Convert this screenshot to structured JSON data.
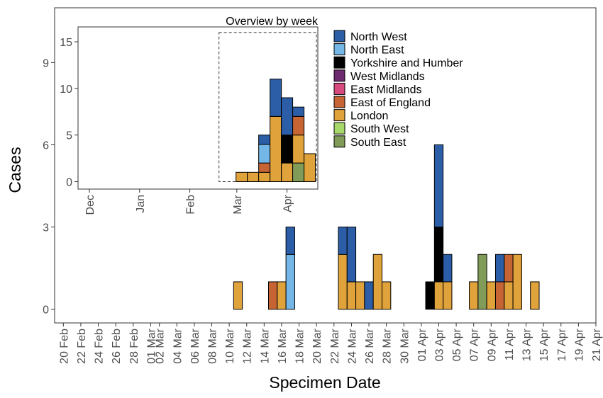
{
  "chart_data": [
    {
      "type": "bar",
      "stacked": true,
      "xlabel": "Specimen Date",
      "ylabel": "Cases",
      "ylim": [
        -0.5,
        11.0
      ],
      "yticks": [
        0,
        3,
        6,
        9
      ],
      "xlim": [
        "2020-02-19",
        "2020-04-21"
      ],
      "x_tick_labels": [
        "20 Feb",
        "22 Feb",
        "24 Feb",
        "26 Feb",
        "28 Feb",
        "01 Mar",
        "02 Mar",
        "04 Mar",
        "06 Mar",
        "08 Mar",
        "10 Mar",
        "12 Mar",
        "14 Mar",
        "16 Mar",
        "18 Mar",
        "20 Mar",
        "22 Mar",
        "24 Mar",
        "26 Mar",
        "28 Mar",
        "30 Mar",
        "01 Apr",
        "03 Apr",
        "05 Apr",
        "07 Apr",
        "09 Apr",
        "11 Apr",
        "13 Apr",
        "15 Apr",
        "17 Apr",
        "19 Apr",
        "21 Apr"
      ],
      "x_tick_dates": [
        "2020-02-20",
        "2020-02-22",
        "2020-02-24",
        "2020-02-26",
        "2020-02-28",
        "2020-03-01",
        "2020-03-02",
        "2020-03-04",
        "2020-03-06",
        "2020-03-08",
        "2020-03-10",
        "2020-03-12",
        "2020-03-14",
        "2020-03-16",
        "2020-03-18",
        "2020-03-20",
        "2020-03-22",
        "2020-03-24",
        "2020-03-26",
        "2020-03-28",
        "2020-03-30",
        "2020-04-01",
        "2020-04-03",
        "2020-04-05",
        "2020-04-07",
        "2020-04-09",
        "2020-04-11",
        "2020-04-13",
        "2020-04-15",
        "2020-04-17",
        "2020-04-19",
        "2020-04-21"
      ],
      "grid": false,
      "bars": [
        {
          "x": "2020-03-11",
          "segments": [
            {
              "region": "London",
              "value": 1
            }
          ]
        },
        {
          "x": "2020-03-15",
          "segments": [
            {
              "region": "East of England",
              "value": 1
            }
          ]
        },
        {
          "x": "2020-03-16",
          "segments": [
            {
              "region": "London",
              "value": 1
            }
          ]
        },
        {
          "x": "2020-03-17",
          "segments": [
            {
              "region": "North East",
              "value": 2
            },
            {
              "region": "North West",
              "value": 1
            }
          ]
        },
        {
          "x": "2020-03-23",
          "segments": [
            {
              "region": "London",
              "value": 2
            },
            {
              "region": "North West",
              "value": 1
            }
          ]
        },
        {
          "x": "2020-03-24",
          "segments": [
            {
              "region": "London",
              "value": 1
            },
            {
              "region": "North West",
              "value": 2
            }
          ]
        },
        {
          "x": "2020-03-25",
          "segments": [
            {
              "region": "London",
              "value": 1
            }
          ]
        },
        {
          "x": "2020-03-26",
          "segments": [
            {
              "region": "North West",
              "value": 1
            }
          ]
        },
        {
          "x": "2020-03-27",
          "segments": [
            {
              "region": "London",
              "value": 2
            }
          ]
        },
        {
          "x": "2020-03-28",
          "segments": [
            {
              "region": "London",
              "value": 1
            }
          ]
        },
        {
          "x": "2020-04-02",
          "segments": [
            {
              "region": "Yorkshire and Humber",
              "value": 1
            }
          ]
        },
        {
          "x": "2020-04-03",
          "segments": [
            {
              "region": "London",
              "value": 1
            },
            {
              "region": "Yorkshire and Humber",
              "value": 2
            },
            {
              "region": "North West",
              "value": 3
            }
          ]
        },
        {
          "x": "2020-04-04",
          "segments": [
            {
              "region": "London",
              "value": 1
            },
            {
              "region": "North West",
              "value": 1
            }
          ]
        },
        {
          "x": "2020-04-07",
          "segments": [
            {
              "region": "London",
              "value": 1
            }
          ]
        },
        {
          "x": "2020-04-08",
          "segments": [
            {
              "region": "South East",
              "value": 2
            }
          ]
        },
        {
          "x": "2020-04-09",
          "segments": [
            {
              "region": "London",
              "value": 1
            }
          ]
        },
        {
          "x": "2020-04-10",
          "segments": [
            {
              "region": "East of England",
              "value": 1
            },
            {
              "region": "North West",
              "value": 1
            }
          ]
        },
        {
          "x": "2020-04-11",
          "segments": [
            {
              "region": "London",
              "value": 1
            },
            {
              "region": "East of England",
              "value": 1
            }
          ]
        },
        {
          "x": "2020-04-12",
          "segments": [
            {
              "region": "London",
              "value": 2
            }
          ]
        },
        {
          "x": "2020-04-14",
          "segments": [
            {
              "region": "London",
              "value": 1
            }
          ]
        }
      ]
    },
    {
      "type": "bar",
      "stacked": true,
      "title": "Overview by week",
      "ylim": [
        -0.8,
        16.6
      ],
      "yticks": [
        0,
        5,
        10,
        15
      ],
      "xlim": [
        "2019-11-24",
        "2020-04-20"
      ],
      "x_tick_labels": [
        "Dec",
        "Jan",
        "Feb",
        "Mar",
        "Apr"
      ],
      "x_tick_dates": [
        "2019-12-01",
        "2020-01-01",
        "2020-02-01",
        "2020-03-01",
        "2020-04-01"
      ],
      "zoom_window": [
        "2020-02-19",
        "2020-04-21"
      ],
      "week_bars": [
        {
          "x": "2020-03-04",
          "segments": [
            {
              "region": "London",
              "value": 1
            }
          ]
        },
        {
          "x": "2020-03-11",
          "segments": [
            {
              "region": "London",
              "value": 1
            }
          ]
        },
        {
          "x": "2020-03-18",
          "segments": [
            {
              "region": "London",
              "value": 1
            },
            {
              "region": "East of England",
              "value": 1
            },
            {
              "region": "North East",
              "value": 2
            },
            {
              "region": "North West",
              "value": 1
            }
          ]
        },
        {
          "x": "2020-03-25",
          "segments": [
            {
              "region": "London",
              "value": 7
            },
            {
              "region": "North West",
              "value": 4
            }
          ]
        },
        {
          "x": "2020-04-01",
          "segments": [
            {
              "region": "London",
              "value": 2
            },
            {
              "region": "Yorkshire and Humber",
              "value": 3
            },
            {
              "region": "North West",
              "value": 4
            }
          ]
        },
        {
          "x": "2020-04-08",
          "segments": [
            {
              "region": "South East",
              "value": 2
            },
            {
              "region": "London",
              "value": 3
            },
            {
              "region": "East of England",
              "value": 2
            },
            {
              "region": "North West",
              "value": 1
            }
          ]
        },
        {
          "x": "2020-04-15",
          "segments": [
            {
              "region": "London",
              "value": 3
            }
          ]
        }
      ]
    }
  ],
  "legend": {
    "placement": "top-right",
    "items": [
      {
        "name": "North West",
        "color": "#2c5ea8"
      },
      {
        "name": "North East",
        "color": "#74b6e6"
      },
      {
        "name": "Yorkshire and Humber",
        "color": "#000000"
      },
      {
        "name": "West Midlands",
        "color": "#6e2a6e"
      },
      {
        "name": "East Midlands",
        "color": "#d64a7d"
      },
      {
        "name": "East of England",
        "color": "#c76433"
      },
      {
        "name": "London",
        "color": "#e0a23a"
      },
      {
        "name": "South West",
        "color": "#a6d96a"
      },
      {
        "name": "South East",
        "color": "#809c58"
      }
    ]
  }
}
